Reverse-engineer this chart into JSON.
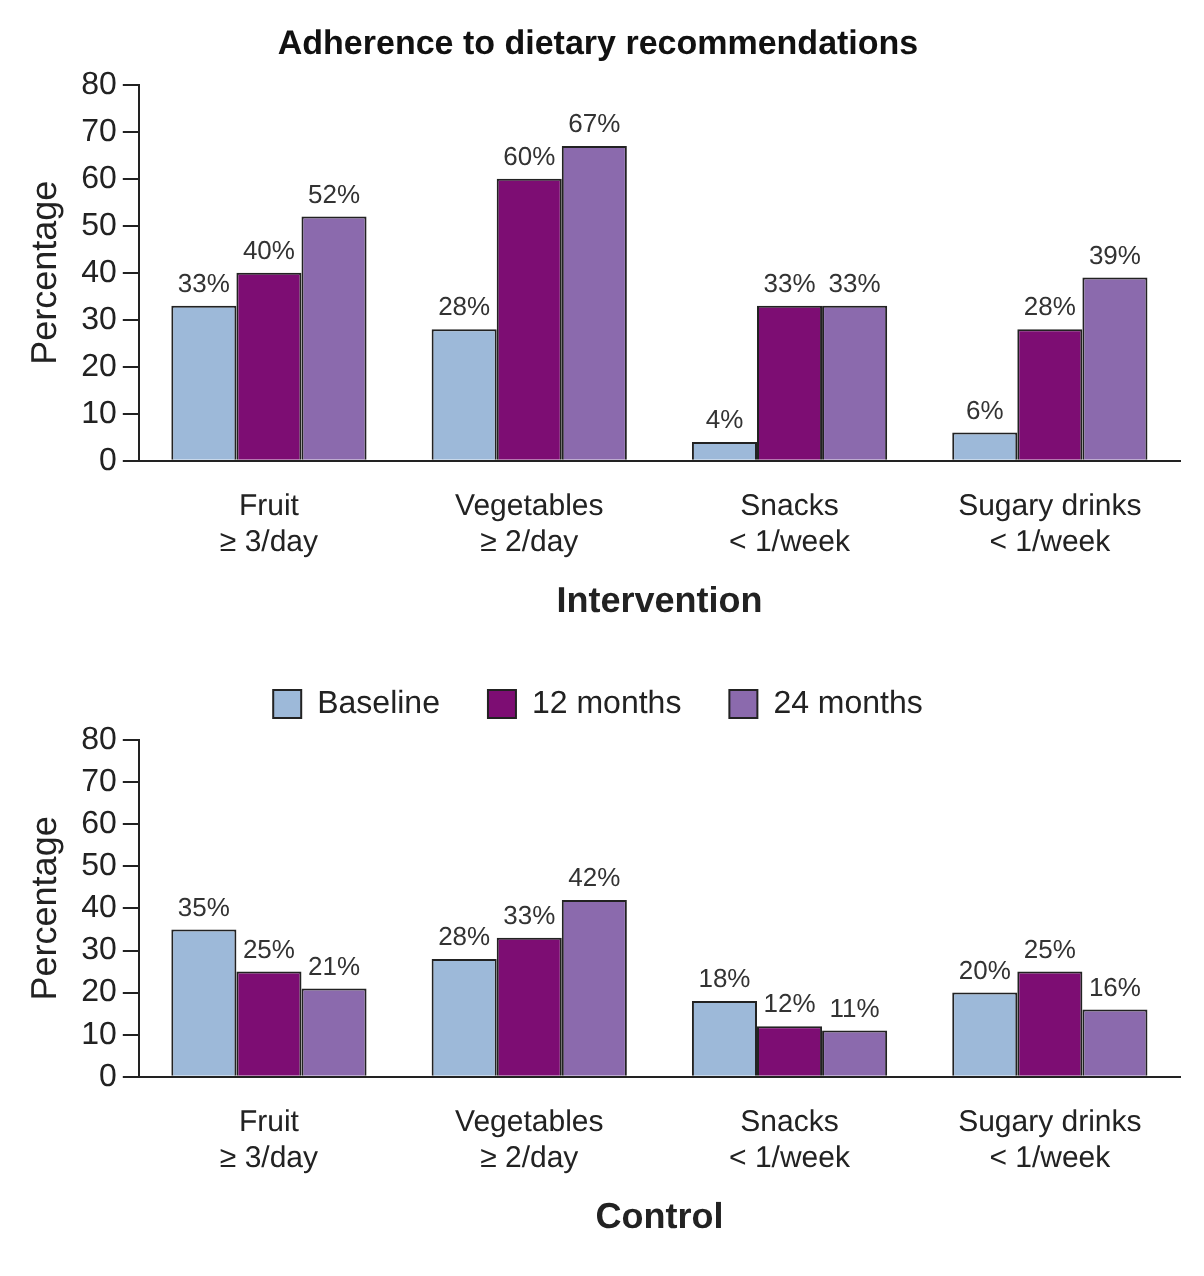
{
  "chart_data": [
    {
      "type": "bar",
      "title": "Adherence to dietary recommendations",
      "xlabel": "Intervention",
      "ylabel": "Percentage",
      "categories": [
        "Fruit\n≥ 3/day",
        "Vegetables\n≥ 2/day",
        "Snacks\n< 1/week",
        "Sugary drinks\n< 1/week"
      ],
      "series": [
        {
          "color": "#9db9d9",
          "values": [
            33,
            28,
            4,
            6
          ],
          "value_labels": [
            "33%",
            "28%",
            "4%",
            "6%"
          ]
        },
        {
          "color": "#7d0d73",
          "values": [
            40,
            60,
            33,
            28
          ],
          "value_labels": [
            "40%",
            "60%",
            "33%",
            "28%"
          ]
        },
        {
          "color": "#8b6aad",
          "values": [
            52,
            67,
            33,
            39
          ],
          "value_labels": [
            "52%",
            "67%",
            "33%",
            "39%"
          ]
        }
      ],
      "ylim": [
        0,
        80
      ],
      "yticks": [
        0,
        10,
        20,
        30,
        40,
        50,
        60,
        70,
        80
      ],
      "grid": false,
      "legend": false
    },
    {
      "type": "bar",
      "xlabel": "Control",
      "ylabel": "Percentage",
      "categories": [
        "Fruit\n≥ 3/day",
        "Vegetables\n≥ 2/day",
        "Snacks\n< 1/week",
        "Sugary drinks\n< 1/week"
      ],
      "series": [
        {
          "name": "Baseline",
          "color": "#9db9d9",
          "values": [
            35,
            28,
            18,
            20
          ],
          "value_labels": [
            "35%",
            "28%",
            "18%",
            "20%"
          ]
        },
        {
          "name": "12 months",
          "color": "#7d0d73",
          "values": [
            25,
            33,
            12,
            25
          ],
          "value_labels": [
            "25%",
            "33%",
            "12%",
            "25%"
          ]
        },
        {
          "name": "24 months",
          "color": "#8b6aad",
          "values": [
            21,
            42,
            11,
            16
          ],
          "value_labels": [
            "21%",
            "42%",
            "11%",
            "16%"
          ]
        }
      ],
      "ylim": [
        0,
        80
      ],
      "yticks": [
        0,
        10,
        20,
        30,
        40,
        50,
        60,
        70,
        80
      ],
      "grid": false,
      "legend": "top"
    }
  ]
}
